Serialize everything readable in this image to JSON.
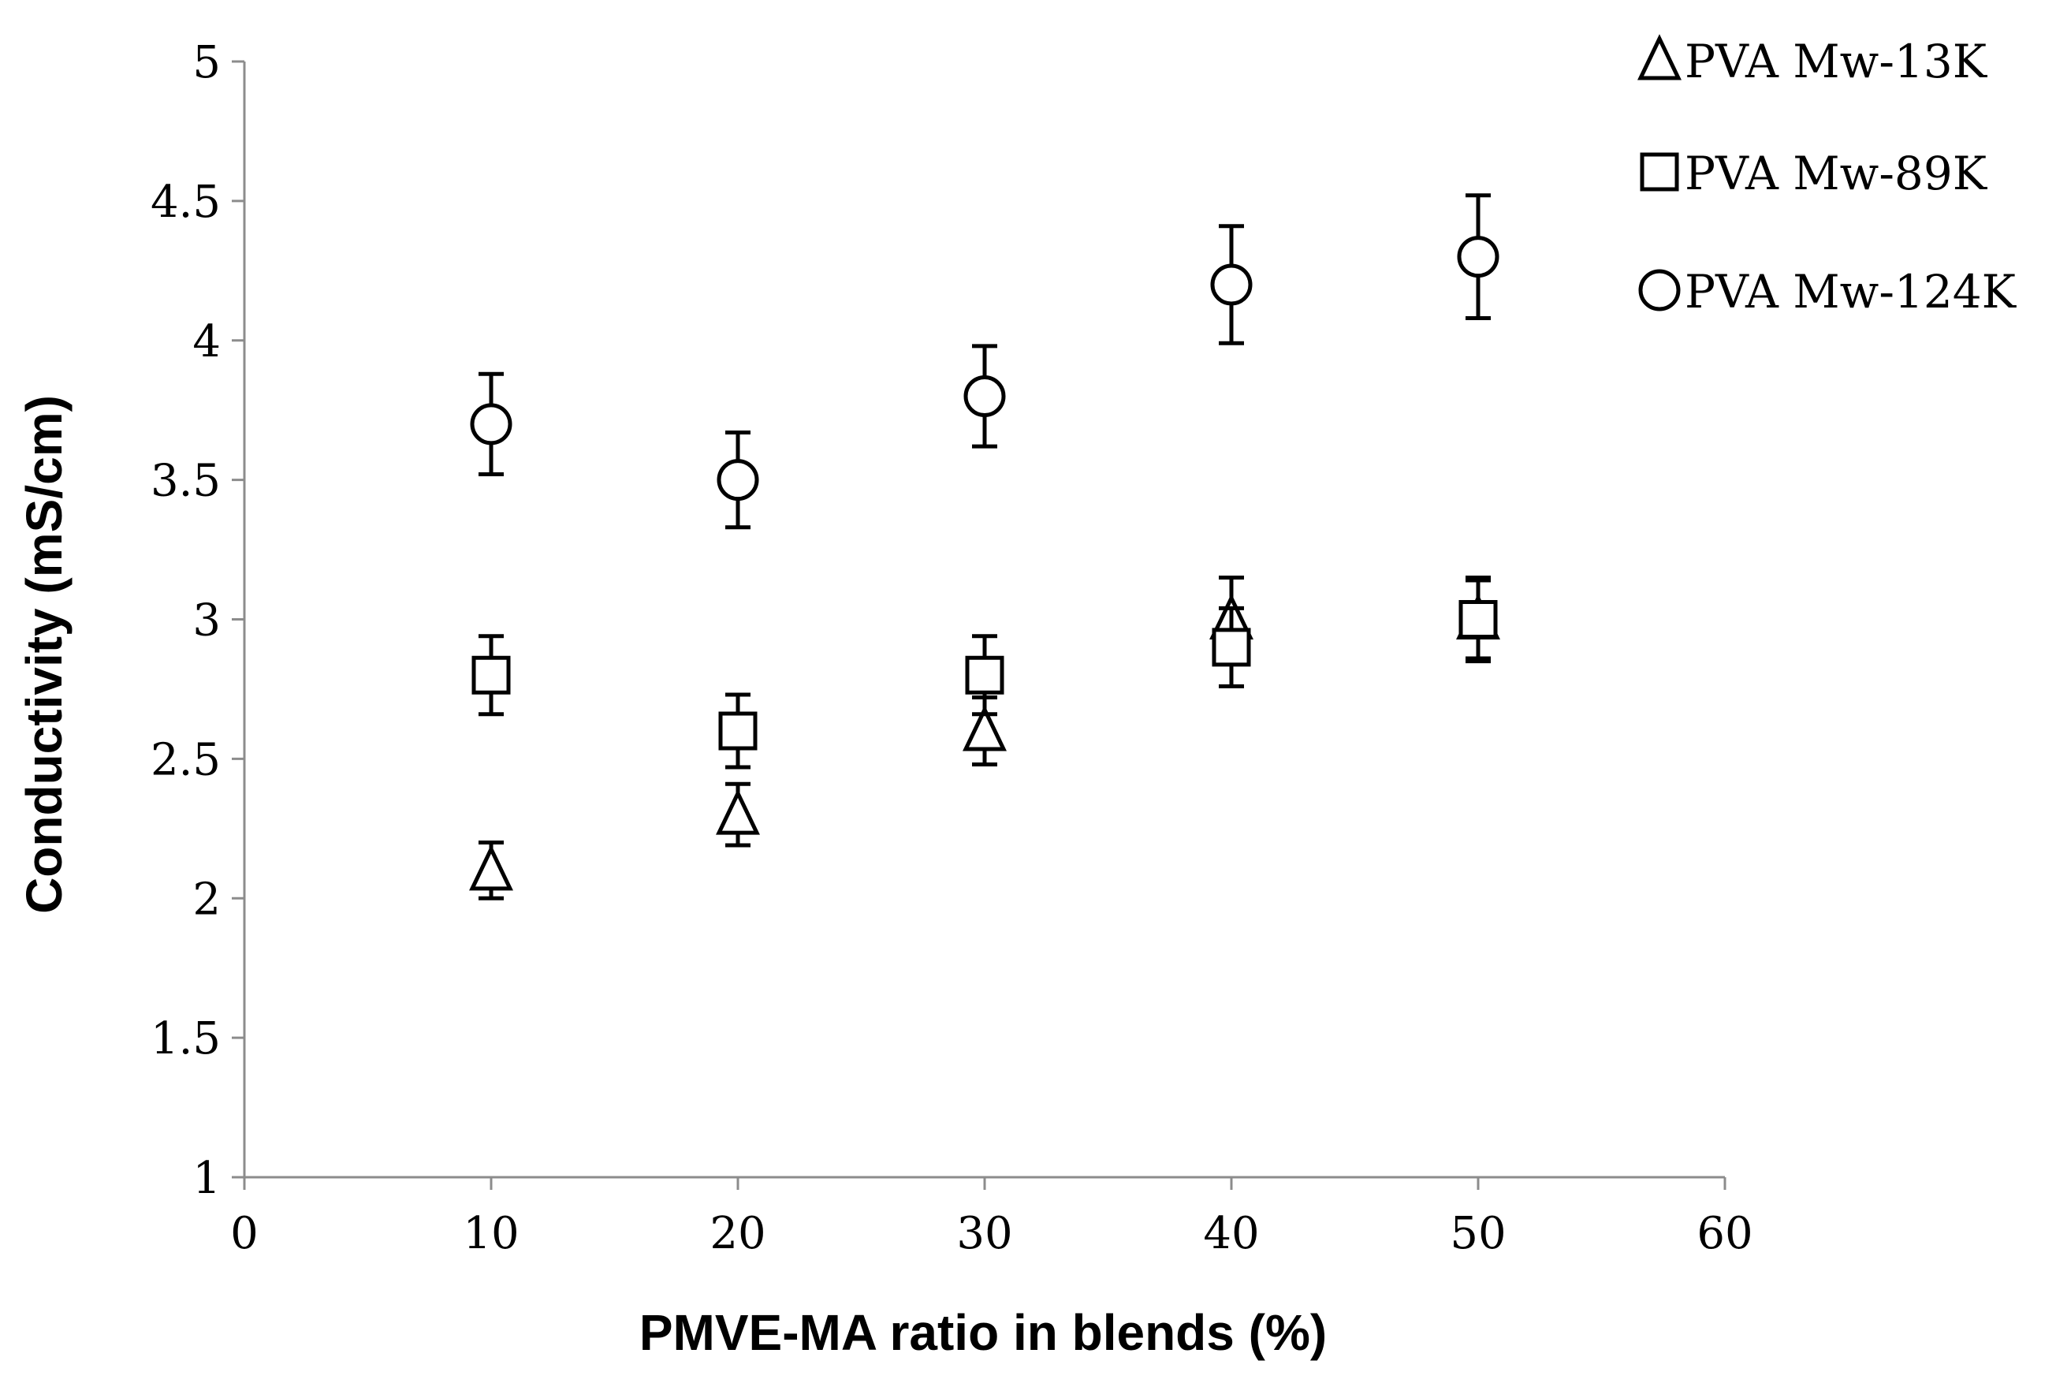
{
  "chart_data": {
    "type": "scatter",
    "title": "",
    "xlabel": "PMVE-MA ratio in blends (%)",
    "ylabel": "Conductivity (mS/cm)",
    "xlim": [
      0,
      60
    ],
    "ylim": [
      1,
      5
    ],
    "xticks": [
      0,
      10,
      20,
      30,
      40,
      50,
      60
    ],
    "yticks": [
      1,
      1.5,
      2,
      2.5,
      3,
      3.5,
      4,
      4.5,
      5
    ],
    "ytick_labels": [
      "1",
      "1.5",
      "2",
      "2.5",
      "3",
      "3.5",
      "4",
      "4.5",
      "5"
    ],
    "grid": false,
    "legend_position": "top-right",
    "series": [
      {
        "name": "PVA Mw-13K",
        "marker": "triangle",
        "x": [
          10,
          20,
          30,
          40,
          50
        ],
        "y": [
          2.1,
          2.3,
          2.6,
          3.0,
          3.0
        ],
        "err": [
          0.1,
          0.11,
          0.12,
          0.15,
          0.15
        ]
      },
      {
        "name": "PVA Mw-89K",
        "marker": "square",
        "x": [
          10,
          20,
          30,
          40,
          50
        ],
        "y": [
          2.8,
          2.6,
          2.8,
          2.9,
          3.0
        ],
        "err": [
          0.14,
          0.13,
          0.14,
          0.14,
          0.14
        ]
      },
      {
        "name": "PVA Mw-124K",
        "marker": "circle",
        "x": [
          10,
          20,
          30,
          40,
          50
        ],
        "y": [
          3.7,
          3.5,
          3.8,
          4.2,
          4.3
        ],
        "err": [
          0.18,
          0.17,
          0.18,
          0.21,
          0.22
        ]
      }
    ]
  }
}
